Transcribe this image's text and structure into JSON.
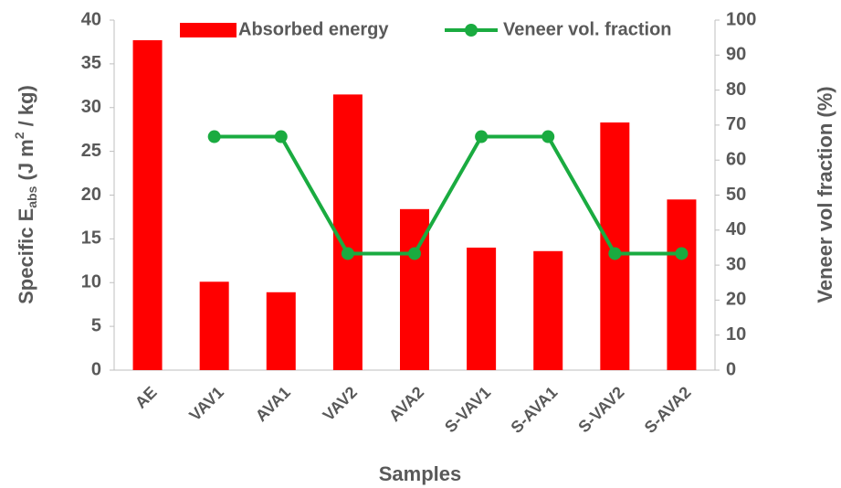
{
  "chart_data": {
    "type": "bar",
    "categories": [
      "AE",
      "VAV1",
      "AVA1",
      "VAV2",
      "AVA2",
      "S-VAV1",
      "S-AVA1",
      "S-VAV2",
      "S-AVA2"
    ],
    "series": [
      {
        "name": "Absorbed energy",
        "type": "bar",
        "color": "#ff0000",
        "values": [
          37.7,
          10.1,
          8.9,
          31.5,
          18.4,
          14.0,
          13.6,
          28.3,
          19.5
        ]
      },
      {
        "name": "Veneer vol. fraction",
        "type": "line",
        "axis": "y2",
        "color": "#1aab40",
        "values": [
          null,
          66.7,
          66.7,
          33.3,
          33.3,
          66.7,
          66.7,
          33.3,
          33.3
        ]
      }
    ],
    "x_label": "Samples",
    "y_label": [
      "Specific E",
      "abs",
      " (J m",
      "2",
      " / kg)"
    ],
    "y2_label": "Veneer vol fraction (%)",
    "ylim": [
      0,
      40
    ],
    "yticks": [
      0,
      5,
      10,
      15,
      20,
      25,
      30,
      35,
      40
    ],
    "y2lim": [
      0,
      100
    ],
    "y2ticks": [
      0,
      10,
      20,
      30,
      40,
      50,
      60,
      70,
      80,
      90,
      100
    ],
    "grid": false,
    "legend": "top"
  }
}
